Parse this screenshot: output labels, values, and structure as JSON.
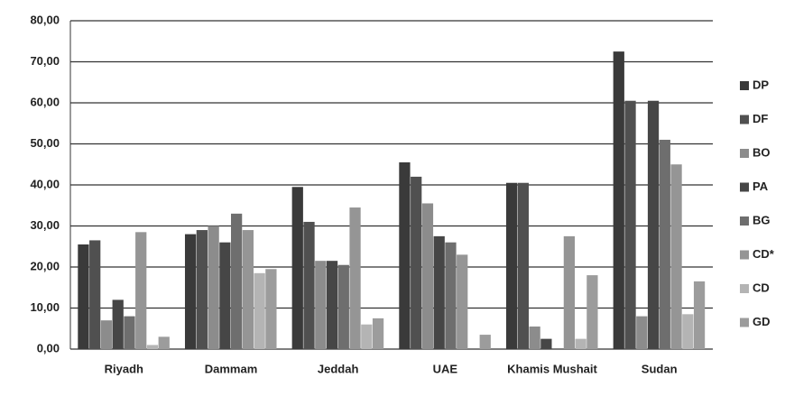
{
  "chart_data": {
    "type": "bar",
    "categories": [
      "Riyadh",
      "Dammam",
      "Jeddah",
      "UAE",
      "Khamis Mushait",
      "Sudan"
    ],
    "series": [
      {
        "name": "DP",
        "color": "#3a3a3a",
        "values": [
          25.5,
          28,
          39.5,
          45.5,
          40.5,
          72.5
        ]
      },
      {
        "name": "DF",
        "color": "#505050",
        "values": [
          26.5,
          29,
          31,
          42,
          40.5,
          60.5
        ]
      },
      {
        "name": "BO",
        "color": "#8c8c8c",
        "values": [
          7,
          30,
          21.5,
          35.5,
          5.5,
          8
        ]
      },
      {
        "name": "PA",
        "color": "#464646",
        "values": [
          12,
          26,
          21.5,
          27.5,
          2.5,
          60.5
        ]
      },
      {
        "name": "BG",
        "color": "#6e6e6e",
        "values": [
          8,
          33,
          20.5,
          26,
          0,
          51
        ]
      },
      {
        "name": "CD*",
        "color": "#959595",
        "values": [
          28.5,
          29,
          34.5,
          23,
          27.5,
          45
        ]
      },
      {
        "name": "CD",
        "color": "#b4b4b4",
        "values": [
          1,
          18.5,
          6,
          0,
          2.5,
          8.5
        ]
      },
      {
        "name": "GD",
        "color": "#9c9c9c",
        "values": [
          3,
          19.5,
          7.5,
          3.5,
          18,
          16.5
        ]
      }
    ],
    "ylim": [
      0,
      80
    ],
    "yticks": [
      {
        "value": 0,
        "label": "0,00"
      },
      {
        "value": 10,
        "label": "10,00"
      },
      {
        "value": 20,
        "label": "20,00"
      },
      {
        "value": 30,
        "label": "30,00"
      },
      {
        "value": 40,
        "label": "40,00"
      },
      {
        "value": 50,
        "label": "50,00"
      },
      {
        "value": 60,
        "label": "60,00"
      },
      {
        "value": 70,
        "label": "70,00"
      },
      {
        "value": 80,
        "label": "80,00"
      }
    ],
    "grid": true,
    "legend": "right"
  }
}
